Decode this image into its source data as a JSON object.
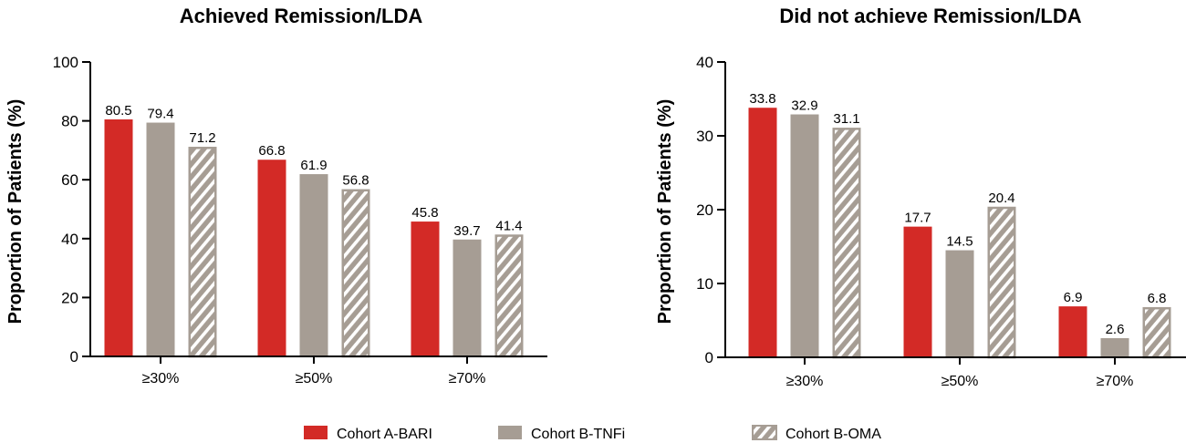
{
  "chart_data": [
    {
      "type": "bar",
      "title": "Achieved Remission/LDA",
      "xlabel": "",
      "ylabel": "Proportion of Patients (%)",
      "ylim": [
        0,
        100
      ],
      "yticks": [
        "0",
        "20",
        "40",
        "60",
        "80",
        "100"
      ],
      "categories": [
        "≥30%",
        "≥50%",
        "≥70%"
      ],
      "series": [
        {
          "name": "Cohort A-BARI",
          "values": [
            80.5,
            66.8,
            45.8
          ],
          "labels": [
            "80.5",
            "66.8",
            "45.8"
          ]
        },
        {
          "name": "Cohort B-TNFi",
          "values": [
            79.4,
            61.9,
            39.7
          ],
          "labels": [
            "79.4",
            "61.9",
            "39.7"
          ]
        },
        {
          "name": "Cohort B-OMA",
          "values": [
            71.2,
            56.8,
            41.4
          ],
          "labels": [
            "71.2",
            "56.8",
            "41.4"
          ]
        }
      ],
      "grid": false
    },
    {
      "type": "bar",
      "title": "Did not achieve Remission/LDA",
      "xlabel": "",
      "ylabel": "Proportion of Patients (%)",
      "ylim": [
        0,
        40
      ],
      "yticks": [
        "0",
        "10",
        "20",
        "30",
        "40"
      ],
      "categories": [
        "≥30%",
        "≥50%",
        "≥70%"
      ],
      "series": [
        {
          "name": "Cohort A-BARI",
          "values": [
            33.8,
            17.7,
            6.9
          ],
          "labels": [
            "33.8",
            "17.7",
            "6.9"
          ]
        },
        {
          "name": "Cohort B-TNFi",
          "values": [
            32.9,
            14.5,
            2.6
          ],
          "labels": [
            "32.9",
            "14.5",
            "2.6"
          ]
        },
        {
          "name": "Cohort B-OMA",
          "values": [
            31.1,
            20.4,
            6.8
          ],
          "labels": [
            "31.1",
            "20.4",
            "6.8"
          ]
        }
      ],
      "grid": false
    }
  ],
  "legend": {
    "placement": "bottom-center",
    "items": [
      {
        "name": "Cohort A-BARI",
        "style": "solid",
        "color": "#d32a26"
      },
      {
        "name": "Cohort B-TNFi",
        "style": "solid",
        "color": "#a69d94"
      },
      {
        "name": "Cohort B-OMA",
        "style": "hatched",
        "color": "#a69d94"
      }
    ]
  },
  "colors": {
    "bari": "#d32a26",
    "tnfi": "#a69d94",
    "oma": "#a69d94",
    "hatch": "#ffffff",
    "axis": "#000000"
  }
}
